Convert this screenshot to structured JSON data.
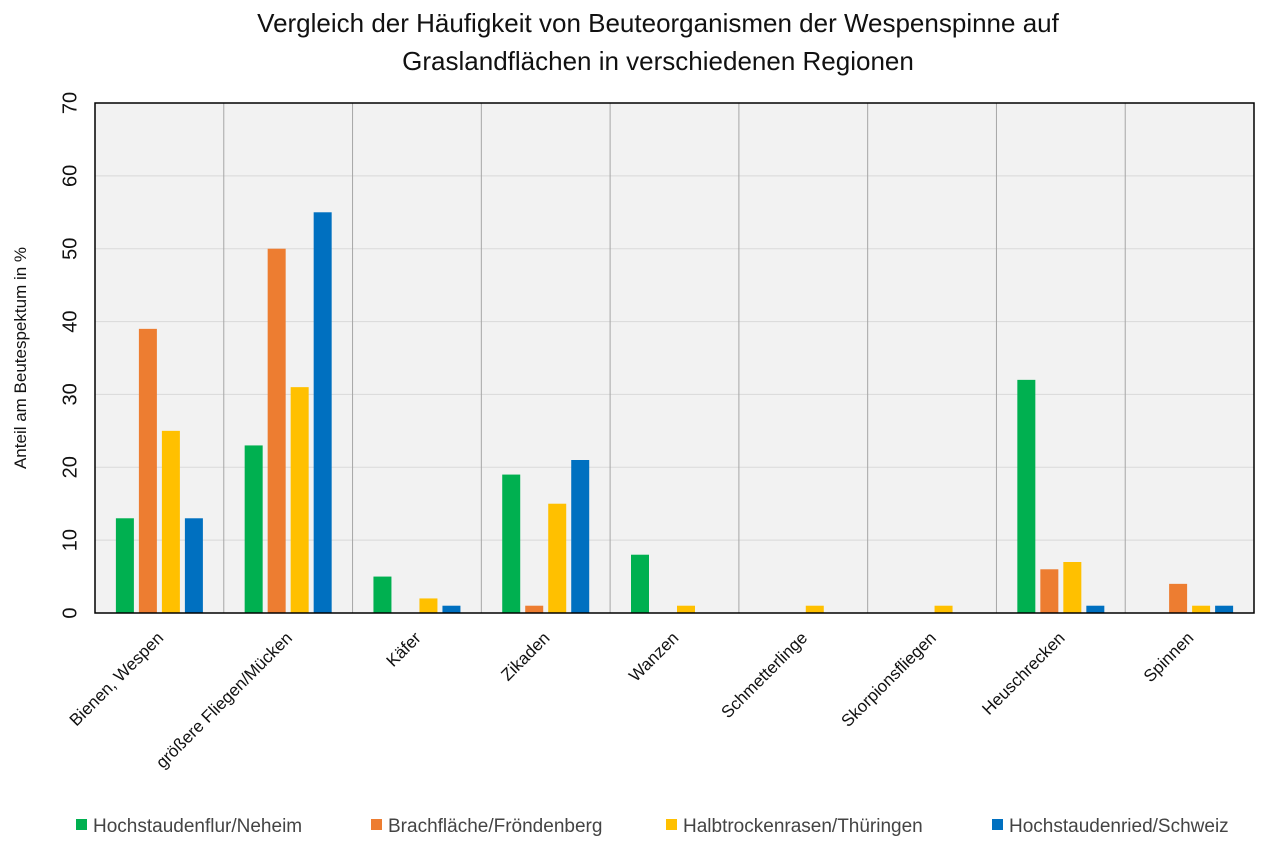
{
  "chart_data": {
    "type": "bar",
    "title": [
      "Vergleich der Häufigkeit  von Beuteorganismen der Wespenspinne auf",
      "Graslandflächen in verschiedenen Regionen"
    ],
    "xlabel": "",
    "ylabel": "Anteil am Beutespektum in %",
    "ylim": [
      0,
      70
    ],
    "yticks": [
      0,
      10,
      20,
      30,
      40,
      50,
      60,
      70
    ],
    "grid": true,
    "legend_position": "bottom",
    "categories": [
      "Bienen, Wespen",
      "größere Fliegen/Mücken",
      "Käfer",
      "Zikaden",
      "Wanzen",
      "Schmetterlinge",
      "Skorpionsfliegen",
      "Heuschrecken",
      "Spinnen"
    ],
    "series": [
      {
        "name": "Hochstaudenflur/Neheim",
        "color": "#00b050",
        "values": [
          13,
          23,
          5,
          19,
          8,
          0,
          0,
          32,
          0
        ]
      },
      {
        "name": "Brachfläche/Fröndenberg",
        "color": "#ed7d31",
        "values": [
          39,
          50,
          0,
          1,
          0,
          0,
          0,
          6,
          4
        ]
      },
      {
        "name": "Halbtrockenrasen/Thüringen",
        "color": "#ffc000",
        "values": [
          25,
          31,
          2,
          15,
          1,
          1,
          1,
          7,
          1
        ]
      },
      {
        "name": "Hochstaudenried/Schweiz",
        "color": "#0070c0",
        "values": [
          13,
          55,
          1,
          21,
          0,
          0,
          0,
          1,
          1
        ]
      }
    ],
    "plot_background": "#f2f2f2"
  }
}
